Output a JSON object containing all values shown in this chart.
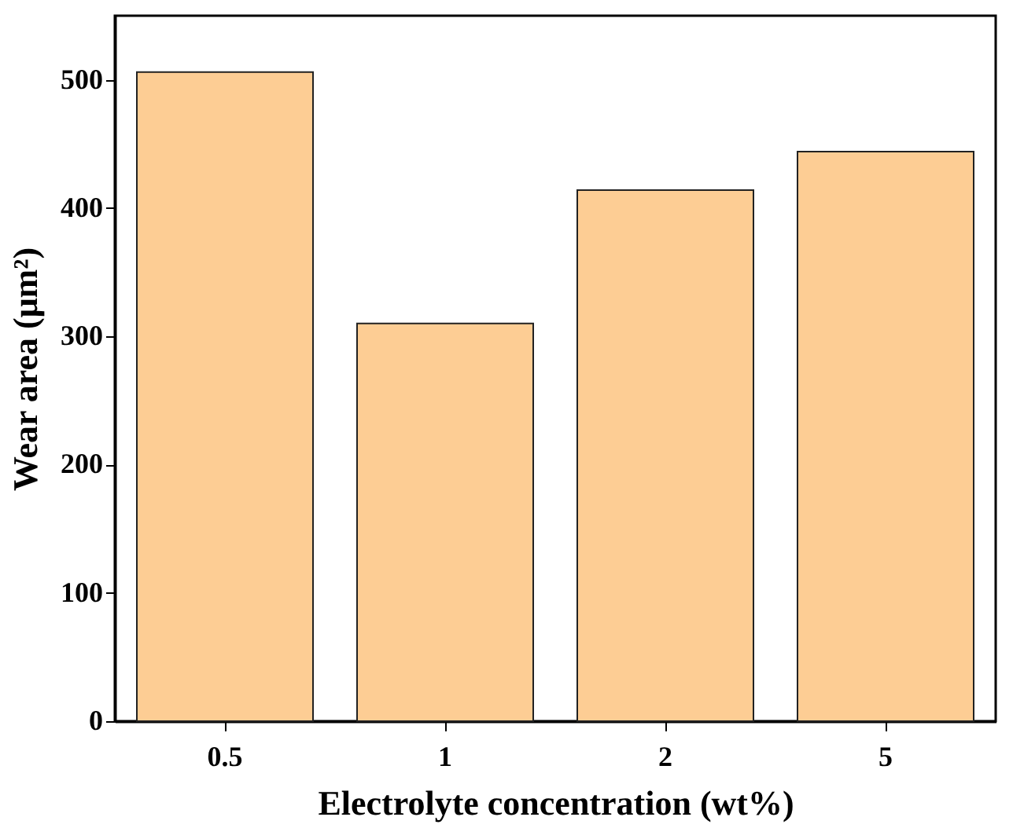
{
  "chart_data": {
    "type": "bar",
    "xlabel": "Electrolyte concentration (wt%)",
    "ylabel": "Wear area (μm²)",
    "categories": [
      "0.5",
      "1",
      "2",
      "5"
    ],
    "values": [
      506,
      310,
      414,
      444
    ],
    "color": "#fdcd94",
    "ylim": [
      0,
      550
    ],
    "yticks": [
      0,
      100,
      200,
      300,
      400,
      500
    ],
    "grid": false
  }
}
